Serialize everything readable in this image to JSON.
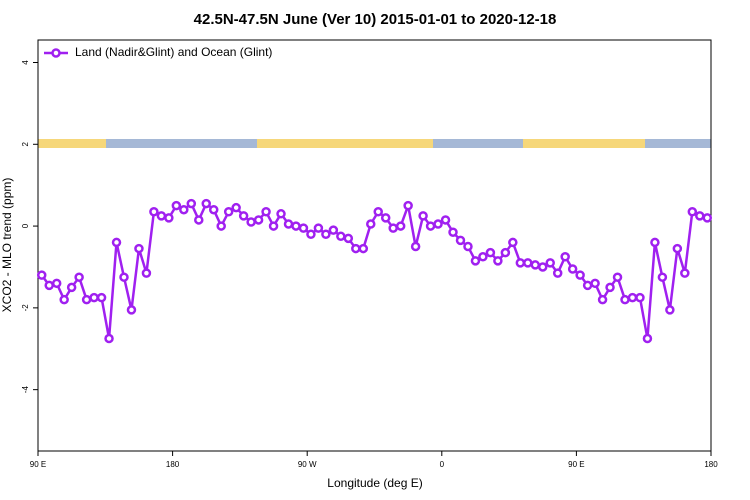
{
  "chart_data": {
    "type": "line",
    "title": "42.5N-47.5N June (Ver 10)   2015-01-01 to 2020-12-18",
    "x_label": "Longitude (deg E)",
    "y_label": "XCO2 - MLO trend (ppm)",
    "x": [
      92.5,
      97.5,
      102.5,
      107.5,
      112.5,
      117.5,
      122.5,
      127.5,
      132.5,
      137.5,
      142.5,
      147.5,
      152.5,
      157.5,
      162.5,
      167.5,
      172.5,
      177.5,
      182.5,
      187.5,
      192.5,
      197.5,
      202.5,
      207.5,
      212.5,
      217.5,
      222.5,
      227.5,
      232.5,
      237.5,
      242.5,
      247.5,
      252.5,
      257.5,
      262.5,
      267.5,
      272.5,
      277.5,
      282.5,
      287.5,
      292.5,
      297.5,
      302.5,
      307.5,
      312.5,
      317.5,
      322.5,
      327.5,
      332.5,
      337.5,
      342.5,
      347.5,
      352.5,
      357.5,
      362.5,
      367.5,
      372.5,
      377.5,
      382.5,
      387.5,
      392.5,
      397.5,
      402.5,
      407.5,
      412.5,
      417.5,
      422.5,
      427.5,
      432.5,
      437.5,
      442.5,
      447.5,
      452.5,
      457.5,
      462.5,
      467.5,
      472.5,
      477.5,
      482.5,
      487.5,
      492.5,
      497.5,
      502.5,
      507.5,
      512.5,
      517.5,
      522.5,
      527.5,
      532.5,
      537.5
    ],
    "series": [
      {
        "name": "Land (Nadir&Glint) and Ocean (Glint)",
        "color": "#a020f0",
        "values": [
          -1.2,
          -1.45,
          -1.4,
          -1.8,
          -1.5,
          -1.25,
          -1.8,
          -1.75,
          -1.75,
          -2.75,
          -0.4,
          -1.25,
          -2.05,
          -0.55,
          -1.15,
          0.35,
          0.25,
          0.2,
          0.5,
          0.4,
          0.55,
          0.15,
          0.55,
          0.4,
          0.0,
          0.35,
          0.45,
          0.25,
          0.1,
          0.15,
          0.35,
          0.0,
          0.3,
          0.05,
          0.0,
          -0.05,
          -0.2,
          -0.05,
          -0.2,
          -0.1,
          -0.25,
          -0.3,
          -0.55,
          -0.55,
          0.05,
          0.35,
          0.2,
          -0.05,
          0.0,
          0.5,
          -0.5,
          0.25,
          0.0,
          0.05,
          0.15,
          -0.15,
          -0.35,
          -0.5,
          -0.85,
          -0.75,
          -0.65,
          -0.85,
          -0.65,
          -0.4,
          -0.9,
          -0.9,
          -0.95,
          -1.0,
          -0.9,
          -1.15,
          -0.75,
          -1.05,
          -1.2,
          -1.45,
          -1.4,
          -1.8,
          -1.5,
          -1.25,
          -1.8,
          -1.75,
          -1.75,
          -2.75,
          -0.4,
          -1.25,
          -2.05,
          -0.55,
          -1.15,
          0.35,
          0.25,
          0.2
        ]
      }
    ],
    "xlim": [
      90,
      540
    ],
    "xticks": [
      {
        "value": 90,
        "label": "90 E"
      },
      180,
      {
        "value": 270,
        "label": "90 W"
      },
      {
        "value": 360,
        "label": "0"
      },
      {
        "value": 450,
        "label": "90 E"
      },
      {
        "value": 540,
        "label": "180"
      }
    ],
    "ylim": [
      -5.5,
      4.55
    ],
    "yticks": [
      -4,
      -2,
      0,
      2,
      4
    ],
    "legend": "top-left"
  }
}
